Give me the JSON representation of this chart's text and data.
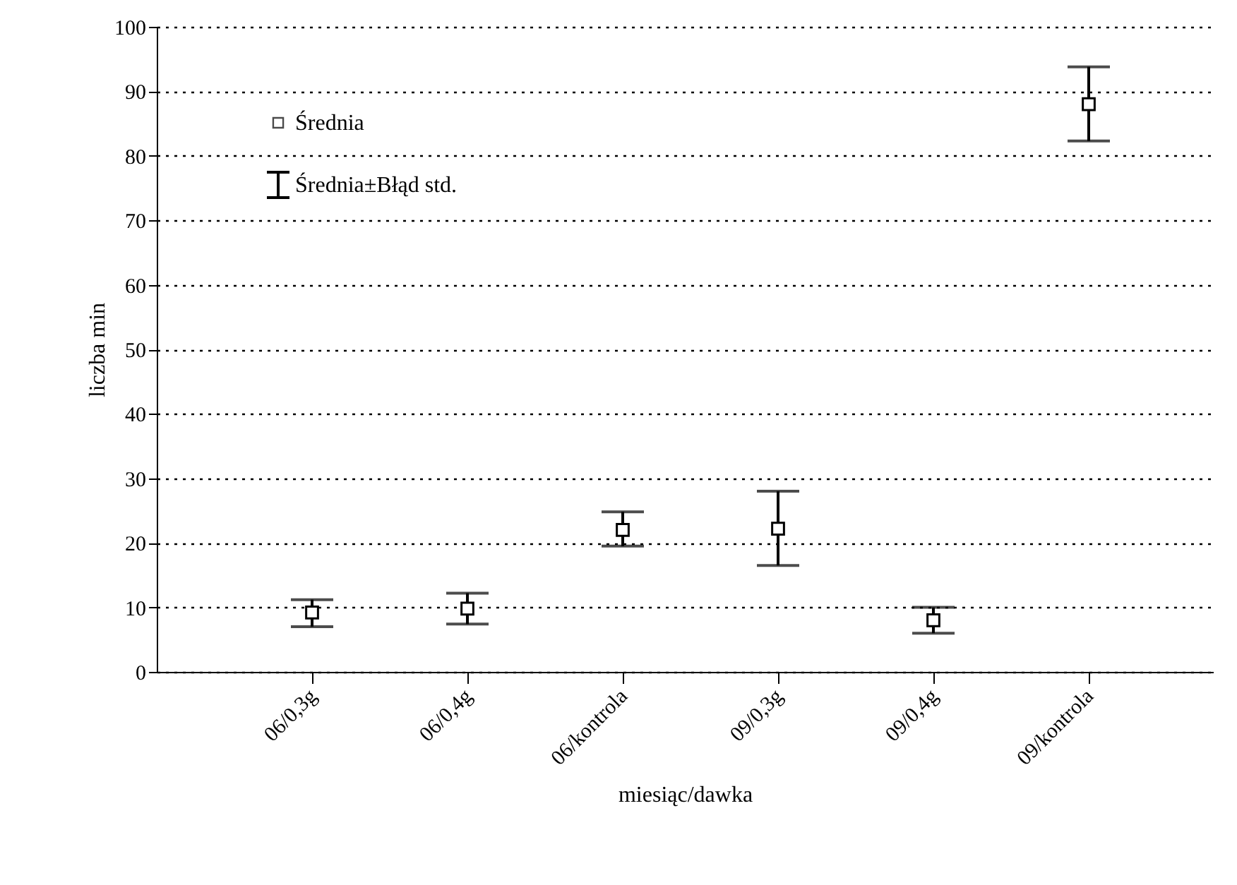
{
  "chart_data": {
    "type": "scatter",
    "xlabel": "miesiąc/dawka",
    "ylabel": "liczba min",
    "categories": [
      "06/0,3g",
      "06/0,4g",
      "06/kontrola",
      "09/0,3g",
      "09/0,4g",
      "09/kontrola"
    ],
    "series": [
      {
        "name": "Średnia",
        "color": "#000000",
        "values": [
          9.2,
          9.8,
          22,
          22.2,
          8,
          88
        ],
        "errors": [
          [
            7,
            11.2
          ],
          [
            7.4,
            12.2
          ],
          [
            19.5,
            24.8
          ],
          [
            16.5,
            28
          ],
          [
            6,
            10
          ],
          [
            82.3,
            93.8
          ]
        ]
      }
    ],
    "annotations": [
      "Średnia±Błąd std."
    ],
    "ylim": [
      0,
      100
    ],
    "yticks": [
      0,
      10,
      20,
      30,
      40,
      50,
      60,
      70,
      80,
      90,
      100
    ],
    "grid": "y",
    "legend": "top left",
    "marker": "square"
  }
}
